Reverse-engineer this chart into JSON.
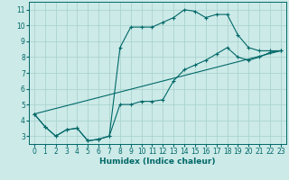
{
  "xlabel": "Humidex (Indice chaleur)",
  "bg_color": "#cceae8",
  "grid_color": "#aad4d0",
  "line_color": "#006868",
  "xlim": [
    -0.5,
    23.5
  ],
  "ylim": [
    2.5,
    11.5
  ],
  "xticks": [
    0,
    1,
    2,
    3,
    4,
    5,
    6,
    7,
    8,
    9,
    10,
    11,
    12,
    13,
    14,
    15,
    16,
    17,
    18,
    19,
    20,
    21,
    22,
    23
  ],
  "yticks": [
    3,
    4,
    5,
    6,
    7,
    8,
    9,
    10,
    11
  ],
  "line1_x": [
    0,
    1,
    2,
    3,
    4,
    5,
    6,
    7,
    8,
    9,
    10,
    11,
    12,
    13,
    14,
    15,
    16,
    17,
    18,
    19,
    20,
    21,
    22,
    23
  ],
  "line1_y": [
    4.4,
    3.6,
    3.0,
    3.4,
    3.5,
    2.7,
    2.8,
    3.0,
    8.6,
    9.9,
    9.9,
    9.9,
    10.2,
    10.5,
    11.0,
    10.9,
    10.5,
    10.7,
    10.7,
    9.4,
    8.6,
    8.4,
    8.4,
    8.4
  ],
  "line2_x": [
    0,
    1,
    2,
    3,
    4,
    5,
    6,
    7,
    8,
    9,
    10,
    11,
    12,
    13,
    14,
    15,
    16,
    17,
    18,
    19,
    20,
    21,
    22,
    23
  ],
  "line2_y": [
    4.4,
    3.6,
    3.0,
    3.4,
    3.5,
    2.7,
    2.8,
    3.0,
    5.0,
    5.0,
    5.2,
    5.2,
    5.3,
    6.5,
    7.2,
    7.5,
    7.8,
    8.2,
    8.6,
    8.0,
    7.8,
    8.0,
    8.3,
    8.4
  ],
  "line3_x": [
    0,
    23
  ],
  "line3_y": [
    4.4,
    8.4
  ]
}
